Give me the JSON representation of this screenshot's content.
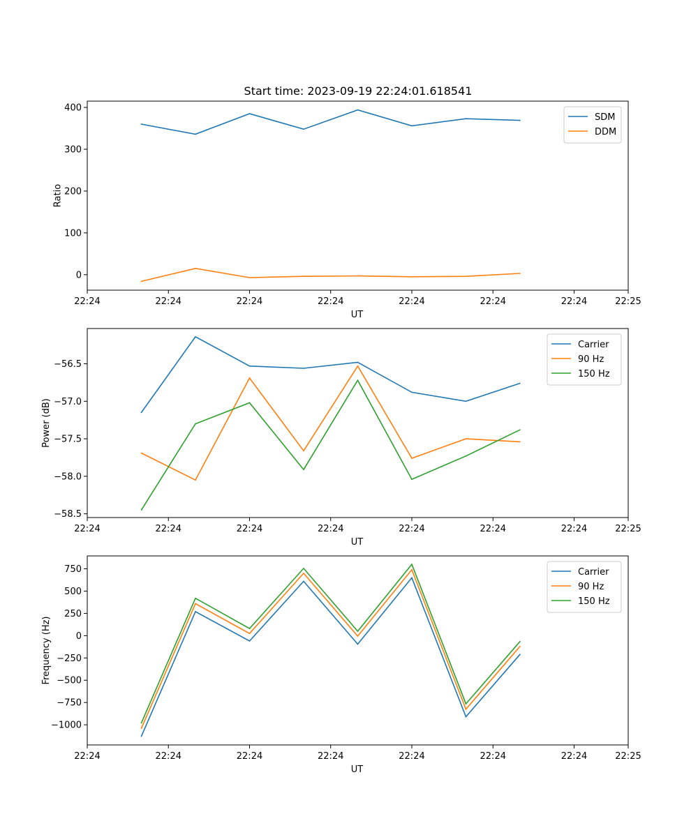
{
  "figure_title": "Start time: 2023-09-19 22:24:01.618541",
  "chart_data": [
    {
      "type": "line",
      "title": "Start time: 2023-09-19 22:24:01.618541",
      "xlabel": "UT",
      "ylabel": "Ratio",
      "xlim": [
        -0.5,
        9.5
      ],
      "ylim": [
        -37,
        415
      ],
      "xticks": [
        -0.5,
        1,
        2.5,
        4,
        5.5,
        7,
        8.5,
        9.5
      ],
      "xtick_labels": [
        "22:24",
        "22:24",
        "22:24",
        "22:24",
        "22:24",
        "22:24",
        "22:24",
        "22:25"
      ],
      "yticks": [
        0,
        100,
        200,
        300,
        400
      ],
      "ytick_labels": [
        "0",
        "100",
        "200",
        "300",
        "400"
      ],
      "x": [
        0.5,
        1.5,
        2.5,
        3.5,
        4.5,
        5.5,
        6.5,
        7.5
      ],
      "legend": "top-right",
      "series": [
        {
          "name": "SDM",
          "color": "#1f77b4",
          "values": [
            360,
            336,
            385,
            348,
            394,
            356,
            373,
            369
          ]
        },
        {
          "name": "DDM",
          "color": "#ff7f0e",
          "values": [
            -16,
            15,
            -7,
            -4,
            -3,
            -5,
            -4,
            3
          ]
        }
      ]
    },
    {
      "type": "line",
      "title": "",
      "xlabel": "UT",
      "ylabel": "Power (dB)",
      "xlim": [
        -0.5,
        9.5
      ],
      "ylim": [
        -58.55,
        -56.03
      ],
      "xticks": [
        -0.5,
        1,
        2.5,
        4,
        5.5,
        7,
        8.5,
        9.5
      ],
      "xtick_labels": [
        "22:24",
        "22:24",
        "22:24",
        "22:24",
        "22:24",
        "22:24",
        "22:24",
        "22:25"
      ],
      "yticks": [
        -58.5,
        -58.0,
        -57.5,
        -57.0,
        -56.5
      ],
      "ytick_labels": [
        "−58.5",
        "−58.0",
        "−57.5",
        "−57.0",
        "−56.5"
      ],
      "x": [
        0.5,
        1.5,
        2.5,
        3.5,
        4.5,
        5.5,
        6.5,
        7.5
      ],
      "legend": "top-right",
      "series": [
        {
          "name": "Carrier",
          "color": "#1f77b4",
          "values": [
            -57.15,
            -56.14,
            -56.53,
            -56.56,
            -56.48,
            -56.88,
            -57.0,
            -56.76
          ]
        },
        {
          "name": "90 Hz",
          "color": "#ff7f0e",
          "values": [
            -57.69,
            -58.05,
            -56.69,
            -57.66,
            -56.53,
            -57.76,
            -57.5,
            -57.54
          ]
        },
        {
          "name": "150 Hz",
          "color": "#2ca02c",
          "values": [
            -58.45,
            -57.3,
            -57.02,
            -57.91,
            -56.72,
            -58.04,
            -57.73,
            -57.38
          ]
        }
      ]
    },
    {
      "type": "line",
      "title": "",
      "xlabel": "UT",
      "ylabel": "Frequency (Hz)",
      "xlim": [
        -0.5,
        9.5
      ],
      "ylim": [
        -1226,
        895
      ],
      "xticks": [
        -0.5,
        1,
        2.5,
        4,
        5.5,
        7,
        8.5,
        9.5
      ],
      "xtick_labels": [
        "22:24",
        "22:24",
        "22:24",
        "22:24",
        "22:24",
        "22:24",
        "22:24",
        "22:25"
      ],
      "yticks": [
        -1000,
        -750,
        -500,
        -250,
        0,
        250,
        500,
        750
      ],
      "ytick_labels": [
        "−1000",
        "−750",
        "−500",
        "−250",
        "0",
        "250",
        "500",
        "750"
      ],
      "x": [
        0.5,
        1.5,
        2.5,
        3.5,
        4.5,
        5.5,
        6.5,
        7.5
      ],
      "legend": "top-right",
      "series": [
        {
          "name": "Carrier",
          "color": "#1f77b4",
          "values": [
            -1130,
            270,
            -60,
            610,
            -95,
            650,
            -910,
            -210
          ]
        },
        {
          "name": "90 Hz",
          "color": "#ff7f0e",
          "values": [
            -1040,
            360,
            25,
            700,
            -5,
            740,
            -825,
            -120
          ]
        },
        {
          "name": "150 Hz",
          "color": "#2ca02c",
          "values": [
            -980,
            420,
            80,
            755,
            50,
            800,
            -765,
            -65
          ]
        }
      ]
    }
  ]
}
